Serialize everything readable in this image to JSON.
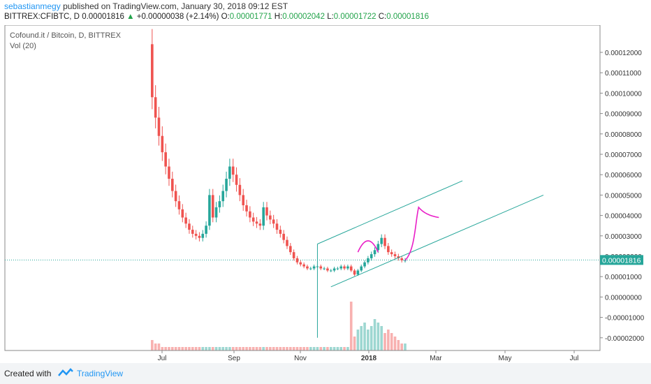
{
  "header": {
    "author": "sebastianmegy",
    "published": "published on TradingView.com, January 30, 2018 09:12 EST",
    "symbol": "BITTREX:CFIBTC, D",
    "last_price": "0.00001816",
    "change_arrow": "▲",
    "change": "+0.00000038 (+2.14%)",
    "open_label": "O:",
    "open": "0.00001771",
    "high_label": "H:",
    "high": "0.00002042",
    "low_label": "L:",
    "low": "0.00001722",
    "close_label": "C:",
    "close": "0.00001816"
  },
  "chart_data": {
    "type": "candlestick",
    "title": "Cofound.it / Bitcoin, D, BITTREX",
    "indicator": "Vol (20)",
    "y_ticks": [
      "0.00012000",
      "0.00011000",
      "0.00010000",
      "0.00009000",
      "0.00008000",
      "0.00007000",
      "0.00006000",
      "0.00005000",
      "0.00004000",
      "0.00003000",
      "0.00002000",
      "0.00001000",
      "0.00000000",
      "-0.00001000",
      "-0.00002000"
    ],
    "y_tick_values": [
      0.00012,
      0.00011,
      0.0001,
      9e-05,
      8e-05,
      7e-05,
      6e-05,
      5e-05,
      4e-05,
      3e-05,
      2e-05,
      1e-05,
      0,
      -1e-05,
      -2e-05
    ],
    "x_ticks": [
      "Jul",
      "Sep",
      "Nov",
      "2018",
      "Mar",
      "May",
      "Jul"
    ],
    "current_price_label": "0.00001816",
    "current_price": 1.816e-05,
    "series": [
      {
        "type": "price",
        "values": [
          0.000124,
          9.8e-05,
          8.8e-05,
          7.9e-05,
          7.1e-05,
          6.4e-05,
          5.8e-05,
          5.2e-05,
          4.7e-05,
          4.3e-05,
          3.9e-05,
          3.6e-05,
          3.3e-05,
          3.1e-05,
          3e-05,
          2.9e-05,
          3.1e-05,
          3.5e-05,
          5e-05,
          3.9e-05,
          4.4e-05,
          4.7e-05,
          5.2e-05,
          5.8e-05,
          6.4e-05,
          6e-05,
          5.5e-05,
          5e-05,
          4.5e-05,
          4.2e-05,
          3.9e-05,
          3.7e-05,
          3.6e-05,
          3.5e-05,
          4.4e-05,
          4e-05,
          3.8e-05,
          3.6e-05,
          3.3e-05,
          3.1e-05,
          2.8e-05,
          2.5e-05,
          2.2e-05,
          1.9e-05,
          1.7e-05,
          1.6e-05,
          1.5e-05,
          1.4e-05,
          1.4e-05,
          1.5e-05,
          1.5e-05,
          1.4e-05,
          1.4e-05,
          1.3e-05,
          1.3e-05,
          1.4e-05,
          1.4e-05,
          1.5e-05,
          1.4e-05,
          1.5e-05,
          1.3e-05,
          1.1e-05,
          1.3e-05,
          1.5e-05,
          1.7e-05,
          1.9e-05,
          2.1e-05,
          2.3e-05,
          2.6e-05,
          2.9e-05,
          2.5e-05,
          2.2e-05,
          2.1e-05,
          2e-05,
          1.9e-05,
          1.8e-05,
          1.8e-05
        ]
      },
      {
        "type": "volume",
        "values": [
          4,
          3,
          2,
          2,
          1,
          1,
          1,
          1,
          1,
          1,
          1,
          1,
          1,
          1,
          1,
          1,
          1,
          1,
          1,
          1,
          1,
          1,
          1,
          1,
          1,
          1,
          1,
          1,
          1,
          1,
          1,
          1,
          1,
          1,
          1,
          1,
          1,
          1,
          1,
          1,
          1,
          1,
          1,
          1,
          1,
          1,
          1,
          1,
          1,
          1,
          1,
          1,
          1,
          1,
          1,
          1,
          1,
          1,
          1,
          1,
          14,
          4,
          6,
          7,
          8,
          6,
          7,
          9,
          8,
          7,
          5,
          6,
          5,
          4,
          3,
          2,
          2
        ]
      }
    ]
  },
  "footer": {
    "created_with": "Created with",
    "brand": "TradingView"
  },
  "colors": {
    "up": "#26a69a",
    "down": "#ef5350",
    "channel": "#26a69a",
    "projection": "#e91ec7",
    "author": "#2196f3"
  }
}
